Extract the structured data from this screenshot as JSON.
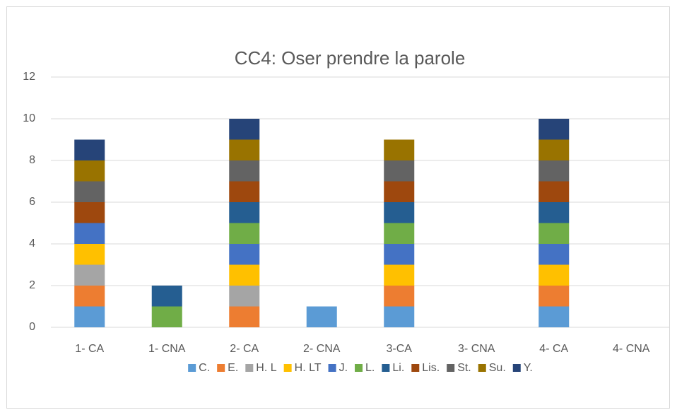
{
  "chart_data": {
    "type": "stacked_bar",
    "title": "CC4: Oser prendre la parole",
    "categories": [
      "1- CA",
      "1- CNA",
      "2- CA",
      "2- CNA",
      "3-CA",
      "3- CNA",
      "4- CA",
      "4- CNA"
    ],
    "series": [
      {
        "name": "C.",
        "color": "#5b9bd5",
        "values": [
          1,
          0,
          0,
          1,
          1,
          0,
          1,
          0
        ]
      },
      {
        "name": "E.",
        "color": "#ed7d31",
        "values": [
          1,
          0,
          1,
          0,
          1,
          0,
          1,
          0
        ]
      },
      {
        "name": "H. L",
        "color": "#a5a5a5",
        "values": [
          1,
          0,
          1,
          0,
          0,
          0,
          0,
          0
        ]
      },
      {
        "name": "H. LT",
        "color": "#ffc000",
        "values": [
          1,
          0,
          1,
          0,
          1,
          0,
          1,
          0
        ]
      },
      {
        "name": "J.",
        "color": "#4472c4",
        "values": [
          1,
          0,
          1,
          0,
          1,
          0,
          1,
          0
        ]
      },
      {
        "name": "L.",
        "color": "#70ad47",
        "values": [
          0,
          1,
          1,
          0,
          1,
          0,
          1,
          0
        ]
      },
      {
        "name": "Li.",
        "color": "#255e91",
        "values": [
          0,
          1,
          1,
          0,
          1,
          0,
          1,
          0
        ]
      },
      {
        "name": "Lis.",
        "color": "#9e480e",
        "values": [
          1,
          0,
          1,
          0,
          1,
          0,
          1,
          0
        ]
      },
      {
        "name": "St.",
        "color": "#636363",
        "values": [
          1,
          0,
          1,
          0,
          1,
          0,
          1,
          0
        ]
      },
      {
        "name": "Su.",
        "color": "#997300",
        "values": [
          1,
          0,
          1,
          0,
          1,
          0,
          1,
          0
        ]
      },
      {
        "name": "Y.",
        "color": "#264478",
        "values": [
          1,
          0,
          1,
          0,
          0,
          0,
          1,
          0
        ]
      }
    ],
    "ylim": [
      0,
      12
    ],
    "yticks": [
      0,
      2,
      4,
      6,
      8,
      10,
      12
    ],
    "grid": true,
    "legend": "bottom"
  }
}
